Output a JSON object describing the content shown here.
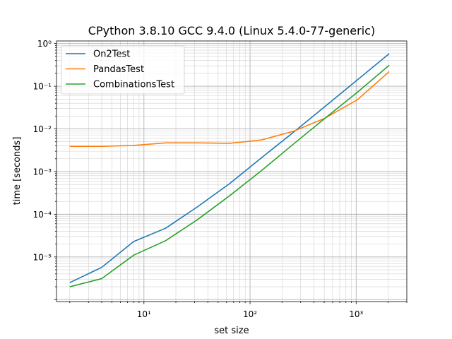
{
  "chart_data": {
    "type": "line",
    "title": "CPython 3.8.10 GCC 9.4.0 (Linux 5.4.0-77-generic)",
    "xlabel": "set size",
    "ylabel": "time [seconds]",
    "xscale": "log",
    "yscale": "log",
    "xlim": [
      1.5,
      3000
    ],
    "ylim": [
      9e-07,
      1.15
    ],
    "grid": true,
    "grid_minor": true,
    "legend_position": "upper-left",
    "x_ticks": [
      {
        "value": 10,
        "label": "10¹"
      },
      {
        "value": 100,
        "label": "10²"
      },
      {
        "value": 1000,
        "label": "10³"
      }
    ],
    "y_ticks": [
      {
        "value": 1e-05,
        "label": "10⁻⁵"
      },
      {
        "value": 0.0001,
        "label": "10⁻⁴"
      },
      {
        "value": 0.001,
        "label": "10⁻³"
      },
      {
        "value": 0.01,
        "label": "10⁻²"
      },
      {
        "value": 0.1,
        "label": "10⁻¹"
      },
      {
        "value": 1,
        "label": "10⁰"
      }
    ],
    "x": [
      2,
      4,
      8,
      16,
      32,
      64,
      128,
      256,
      512,
      1024,
      2048
    ],
    "series": [
      {
        "name": "On2Test",
        "color": "#1f77b4",
        "values": [
          2.5e-06,
          5.7e-06,
          2.3e-05,
          4.7e-05,
          0.00015,
          0.00052,
          0.0021,
          0.0083,
          0.034,
          0.14,
          0.58
        ]
      },
      {
        "name": "PandasTest",
        "color": "#ff7f0e",
        "values": [
          0.0039,
          0.0039,
          0.0041,
          0.0047,
          0.0047,
          0.0046,
          0.0055,
          0.0088,
          0.018,
          0.048,
          0.22
        ]
      },
      {
        "name": "CombinationsTest",
        "color": "#2ca02c",
        "values": [
          2e-06,
          3.1e-06,
          1.1e-05,
          2.4e-05,
          7.5e-05,
          0.00027,
          0.00105,
          0.0044,
          0.018,
          0.072,
          0.31
        ]
      }
    ]
  }
}
